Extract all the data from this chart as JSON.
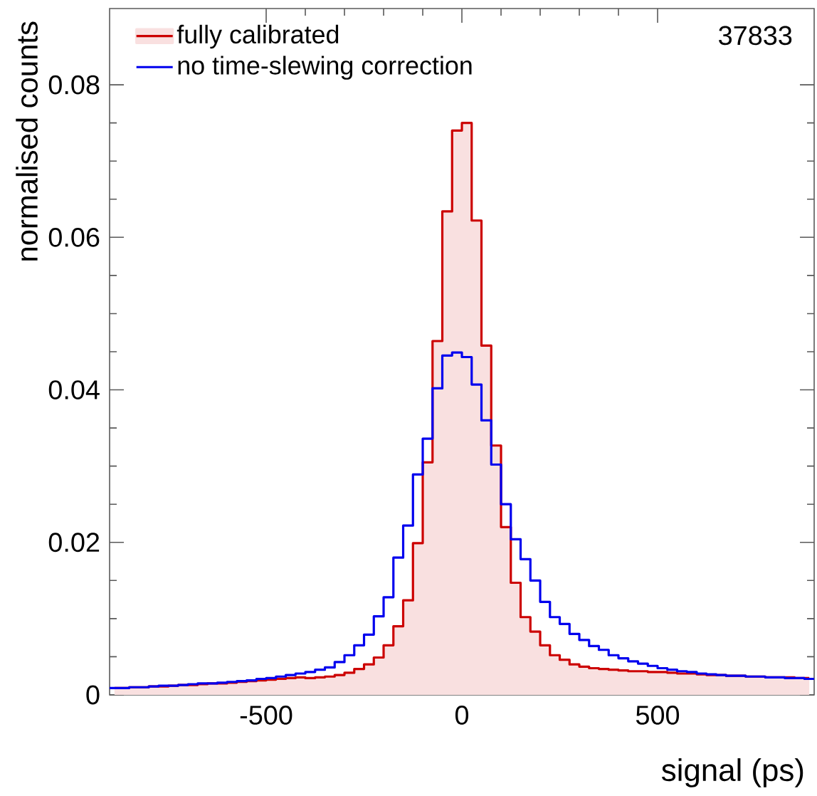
{
  "chart_data": {
    "type": "histogram",
    "xlabel": "signal (ps)",
    "ylabel": "normalised counts",
    "annotations": [
      "37833"
    ],
    "bins": [
      -900,
      -875,
      -850,
      -825,
      -800,
      -775,
      -750,
      -725,
      -700,
      -675,
      -650,
      -625,
      -600,
      -575,
      -550,
      -525,
      -500,
      -475,
      -450,
      -425,
      -400,
      -375,
      -350,
      -325,
      -300,
      -275,
      -250,
      -225,
      -200,
      -175,
      -150,
      -125,
      -100,
      -75,
      -50,
      -25,
      0,
      25,
      50,
      75,
      100,
      125,
      150,
      175,
      200,
      225,
      250,
      275,
      300,
      325,
      350,
      375,
      400,
      425,
      450,
      475,
      500,
      525,
      550,
      575,
      600,
      625,
      650,
      675,
      700,
      725,
      750,
      775,
      800,
      825,
      850,
      875,
      900
    ],
    "series": [
      {
        "name": "fully calibrated",
        "type": "area",
        "color": "#cc0000",
        "x": [
          -887.5,
          -862.5,
          -837.5,
          -812.5,
          -787.5,
          -762.5,
          -737.5,
          -712.5,
          -687.5,
          -662.5,
          -637.5,
          -612.5,
          -587.5,
          -562.5,
          -537.5,
          -512.5,
          -487.5,
          -462.5,
          -437.5,
          -412.5,
          -387.5,
          -362.5,
          -337.5,
          -312.5,
          -287.5,
          -262.5,
          -237.5,
          -212.5,
          -187.5,
          -162.5,
          -137.5,
          -112.5,
          -87.5,
          -62.5,
          -37.5,
          -12.5,
          12.5,
          37.5,
          62.5,
          87.5,
          112.5,
          137.5,
          162.5,
          187.5,
          212.5,
          237.5,
          262.5,
          287.5,
          312.5,
          337.5,
          362.5,
          387.5,
          412.5,
          437.5,
          462.5,
          487.5,
          512.5,
          537.5,
          562.5,
          587.5,
          612.5,
          637.5,
          662.5,
          687.5,
          712.5,
          737.5,
          762.5,
          787.5,
          812.5,
          837.5,
          862.5,
          887.5
        ],
        "values": [
          0.0009,
          0.0009,
          0.001,
          0.001,
          0.0011,
          0.0011,
          0.0012,
          0.0013,
          0.0013,
          0.0014,
          0.0015,
          0.0015,
          0.0016,
          0.0017,
          0.0018,
          0.0019,
          0.002,
          0.0021,
          0.0022,
          0.0023,
          0.0022,
          0.0023,
          0.0024,
          0.0026,
          0.0029,
          0.0034,
          0.004,
          0.0049,
          0.0065,
          0.009,
          0.0124,
          0.0199,
          0.0305,
          0.0464,
          0.0634,
          0.074,
          0.075,
          0.0622,
          0.0458,
          0.0327,
          0.022,
          0.0147,
          0.0102,
          0.0083,
          0.0065,
          0.0052,
          0.0046,
          0.004,
          0.0037,
          0.0035,
          0.0034,
          0.0033,
          0.0032,
          0.0031,
          0.0031,
          0.003,
          0.003,
          0.0029,
          0.0028,
          0.0028,
          0.0027,
          0.0026,
          0.0026,
          0.0025,
          0.0025,
          0.0024,
          0.0024,
          0.0023,
          0.0023,
          0.0023,
          0.0022,
          0.0022
        ]
      },
      {
        "name": "no time-slewing correction",
        "color": "#0000ee",
        "values": [
          0.0009,
          0.0009,
          0.001,
          0.001,
          0.0011,
          0.0012,
          0.0012,
          0.0013,
          0.0014,
          0.0015,
          0.0015,
          0.0016,
          0.0017,
          0.0018,
          0.0019,
          0.0021,
          0.0022,
          0.0024,
          0.0026,
          0.0028,
          0.003,
          0.0033,
          0.0036,
          0.0043,
          0.0052,
          0.0065,
          0.0079,
          0.0103,
          0.0128,
          0.018,
          0.0222,
          0.0289,
          0.0336,
          0.0402,
          0.0445,
          0.0449,
          0.0443,
          0.0407,
          0.036,
          0.0302,
          0.025,
          0.0204,
          0.0178,
          0.015,
          0.0122,
          0.0102,
          0.0093,
          0.008,
          0.0072,
          0.0064,
          0.0059,
          0.0052,
          0.0048,
          0.0044,
          0.0041,
          0.0038,
          0.0035,
          0.0033,
          0.0031,
          0.003,
          0.0028,
          0.0027,
          0.0026,
          0.0025,
          0.0025,
          0.0024,
          0.0024,
          0.0023,
          0.0023,
          0.0022,
          0.0022,
          0.0021
        ]
      }
    ],
    "xlim": [
      -900,
      900
    ],
    "ylim": [
      0,
      0.09
    ],
    "xticks": [
      -500,
      0,
      500
    ],
    "yticks": [
      0,
      0.02,
      0.04,
      0.06,
      0.08
    ],
    "legend": "top left",
    "grid": false
  }
}
